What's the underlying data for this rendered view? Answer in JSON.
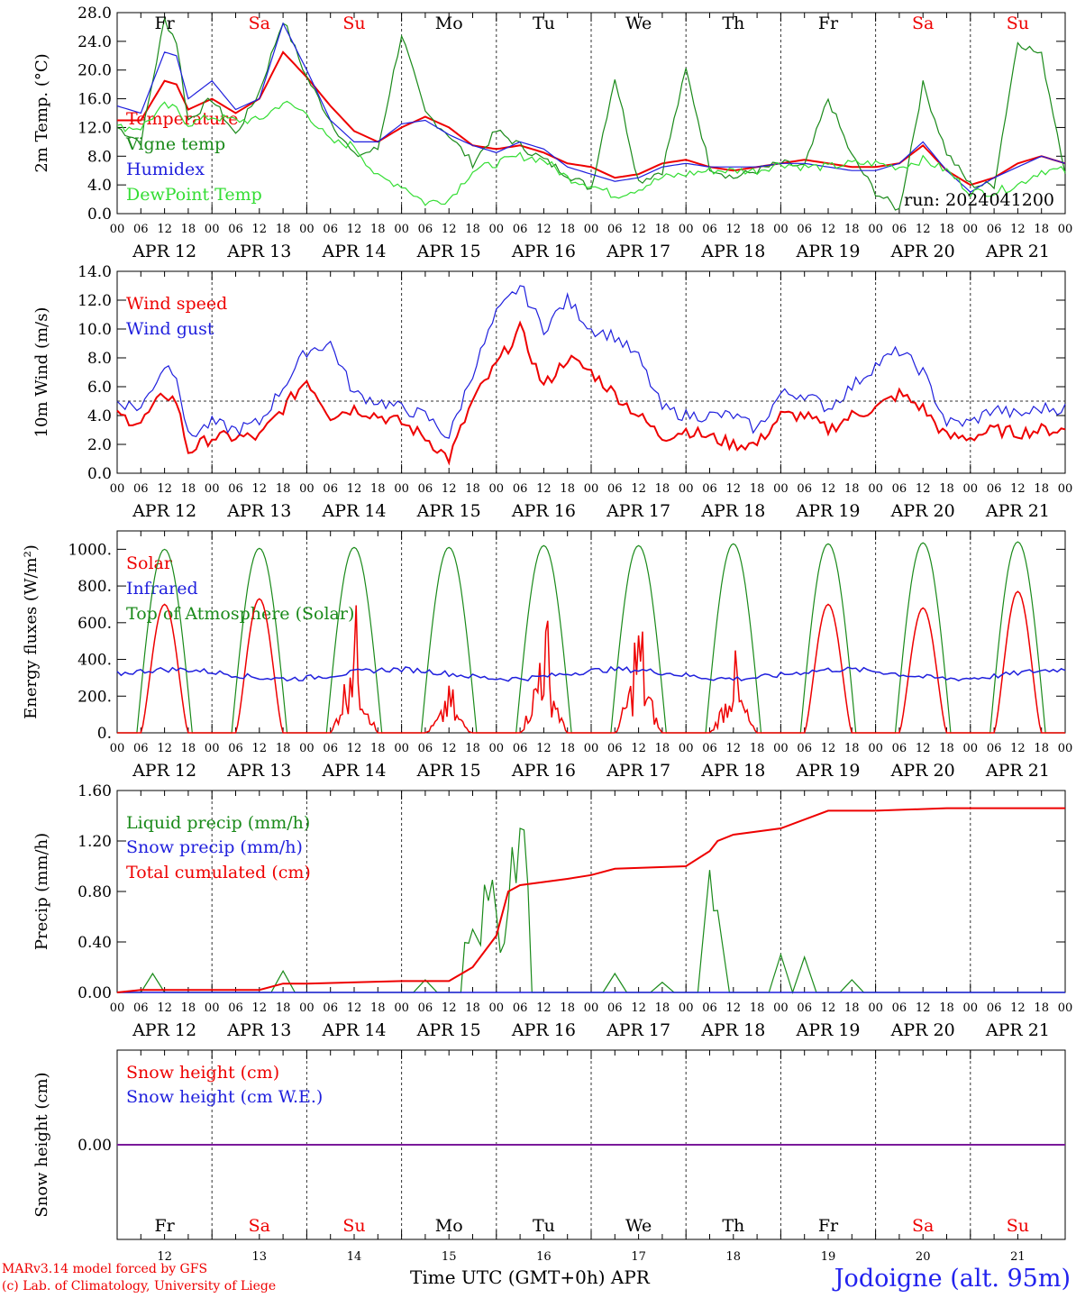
{
  "colors": {
    "red": "#ee0000",
    "green": "#1a8a1a",
    "blue": "#1f1fdd",
    "lightgreen": "#33dd33",
    "purple": "#7a1a9a",
    "grey": "#555555"
  },
  "x_tick_labels": [
    "00",
    "06",
    "12",
    "18"
  ],
  "x_tick_last": "00",
  "dates": [
    "APR 12",
    "APR 13",
    "APR 14",
    "APR 15",
    "APR 16",
    "APR 17",
    "APR 18",
    "APR 19",
    "APR 20",
    "APR 21"
  ],
  "weekdays": [
    {
      "label": "Fr",
      "weekend": false
    },
    {
      "label": "Sa",
      "weekend": true
    },
    {
      "label": "Su",
      "weekend": true
    },
    {
      "label": "Mo",
      "weekend": false
    },
    {
      "label": "Tu",
      "weekend": false
    },
    {
      "label": "We",
      "weekend": false
    },
    {
      "label": "Th",
      "weekend": false
    },
    {
      "label": "Fr",
      "weekend": false
    },
    {
      "label": "Sa",
      "weekend": true
    },
    {
      "label": "Su",
      "weekend": true
    }
  ],
  "day_numbers": [
    "12",
    "13",
    "14",
    "15",
    "16",
    "17",
    "18",
    "19",
    "20",
    "21"
  ],
  "footer": {
    "model": "MARv3.14 model forced by GFS",
    "lab": "(c) Lab. of Climatology, University of Liege",
    "xlabel": "Time UTC (GMT+0h) APR",
    "station": "Jodoigne (alt. 95m)"
  },
  "chart_data": [
    {
      "type": "line",
      "ylabel": "2m Temp. (°C)",
      "ylim": [
        0,
        28
      ],
      "yticks": [
        "0.0",
        "4.0",
        "8.0",
        "12.0",
        "16.0",
        "20.0",
        "24.0",
        "28.0"
      ],
      "grid": "dashed vertical day separators",
      "annotation": "run: 2024041200",
      "x_hours": [
        0,
        6,
        12,
        15,
        18,
        24,
        30,
        36,
        42,
        48,
        54,
        60,
        66,
        72,
        78,
        84,
        90,
        96,
        102,
        108,
        114,
        120,
        126,
        132,
        138,
        144,
        150,
        156,
        162,
        168,
        174,
        180,
        186,
        192,
        198,
        204,
        210,
        216,
        222,
        228,
        234,
        240
      ],
      "series": [
        {
          "name": "Temperature",
          "color": "red",
          "values": [
            13,
            13,
            18.5,
            18,
            14.5,
            16,
            14,
            16,
            22.5,
            19,
            15,
            11.5,
            10,
            12,
            13.5,
            12,
            9.5,
            9,
            9.5,
            8.5,
            7,
            6.5,
            5,
            5.5,
            7,
            7.5,
            6.5,
            6,
            6.5,
            7,
            7.5,
            7,
            6.5,
            6.5,
            7,
            9.5,
            6,
            4,
            5,
            7,
            8,
            7
          ]
        },
        {
          "name": "Vigne temp",
          "color": "green",
          "values": [
            12,
            10,
            27,
            24,
            13,
            16,
            11,
            17,
            27,
            19,
            13,
            8,
            9,
            25,
            14,
            11,
            7,
            11.5,
            9.5,
            7.5,
            5.5,
            3.5,
            19,
            4.5,
            6,
            20,
            6.5,
            5,
            6,
            7,
            6.5,
            16,
            8,
            3,
            0.5,
            18,
            8.5,
            4,
            4,
            24,
            22,
            6
          ]
        },
        {
          "name": "Humidex",
          "color": "blue",
          "values": [
            15,
            14,
            22.5,
            22,
            16,
            18.5,
            14.5,
            16,
            26.5,
            20,
            13,
            10,
            10,
            12.5,
            13,
            11,
            9.5,
            8.5,
            10,
            9,
            6.5,
            5.5,
            4.5,
            5,
            6.5,
            7,
            6.5,
            6.5,
            6.5,
            7,
            7,
            6.5,
            6,
            6,
            7,
            10,
            6,
            3,
            5,
            6.5,
            8,
            7
          ]
        },
        {
          "name": "DewPoint Temp",
          "color": "lightgreen",
          "values": [
            12,
            12,
            15,
            14.5,
            12.5,
            13.5,
            13,
            13,
            15.5,
            14,
            10,
            9.5,
            5,
            4,
            1.5,
            2,
            6,
            7,
            8,
            7.5,
            5,
            4,
            2.5,
            3.5,
            5,
            5.5,
            6,
            6,
            6,
            7,
            6.5,
            6.5,
            7,
            7,
            6.5,
            7.5,
            6,
            3,
            3,
            4,
            6,
            6
          ]
        }
      ]
    },
    {
      "type": "line",
      "ylabel": "10m Wind (m/s)",
      "ylim": [
        0,
        14
      ],
      "yticks": [
        "0.0",
        "2.0",
        "4.0",
        "6.0",
        "8.0",
        "10.0",
        "12.0",
        "14.0"
      ],
      "reference_line": 5,
      "x_hours": [
        0,
        6,
        12,
        15,
        18,
        24,
        30,
        36,
        42,
        48,
        54,
        60,
        66,
        72,
        78,
        84,
        90,
        96,
        102,
        108,
        114,
        120,
        126,
        132,
        138,
        144,
        150,
        156,
        162,
        168,
        174,
        180,
        186,
        192,
        198,
        204,
        210,
        216,
        222,
        228,
        234,
        240
      ],
      "series": [
        {
          "name": "Wind speed",
          "color": "red",
          "values": [
            4,
            3.5,
            5.5,
            5,
            1.5,
            2.5,
            2.5,
            2.5,
            4.5,
            6.5,
            4,
            4.5,
            4,
            3.5,
            2.5,
            1,
            5,
            7.5,
            10,
            6,
            8,
            7,
            5.5,
            4,
            2.5,
            3,
            2.5,
            2,
            2,
            4,
            4,
            3,
            4,
            4.5,
            5.5,
            4.5,
            2.5,
            2.5,
            3,
            2.8,
            3,
            3
          ]
        },
        {
          "name": "Wind gust",
          "color": "blue",
          "values": [
            5,
            4.5,
            7.5,
            7,
            2.5,
            3.5,
            3,
            3.5,
            6,
            8.5,
            9,
            5.5,
            5,
            4.5,
            4,
            2.5,
            7,
            11,
            13,
            10,
            12,
            10,
            9.5,
            8,
            4.5,
            4,
            4,
            4,
            3,
            5.5,
            5.5,
            4.5,
            6,
            7.5,
            8.5,
            7,
            3.5,
            3.5,
            4.5,
            4,
            4.5,
            4.5
          ]
        }
      ]
    },
    {
      "type": "line",
      "ylabel": "Energy fluxes (W/m²)",
      "ylim": [
        0,
        1100
      ],
      "yticks": [
        "0.",
        "200.",
        "400.",
        "600.",
        "800.",
        "1000."
      ],
      "series": [
        {
          "name": "Solar",
          "color": "red",
          "daily_peaks": [
            700,
            730,
            720,
            260,
            680,
            640,
            460,
            700,
            680,
            770
          ]
        },
        {
          "name": "Infrared",
          "color": "blue",
          "typical_range": [
            270,
            380
          ]
        },
        {
          "name": "Top of Atmosphere (Solar)",
          "color": "green",
          "daily_peaks": [
            1000,
            1005,
            1010,
            1010,
            1020,
            1020,
            1030,
            1030,
            1035,
            1040
          ]
        }
      ]
    },
    {
      "type": "line",
      "ylabel": "Precip (mm/h)",
      "ylim": [
        0,
        1.6
      ],
      "yticks": [
        "0.00",
        "0.40",
        "0.80",
        "1.20",
        "1.60"
      ],
      "series": [
        {
          "name": "Liquid precip (mm/h)",
          "color": "green",
          "notable_values": [
            {
              "hour": 9,
              "value": 0.15
            },
            {
              "hour": 42,
              "value": 0.17
            },
            {
              "hour": 78,
              "value": 0.1
            },
            {
              "hour": 90,
              "value": 0.5
            },
            {
              "hour": 102,
              "value": 1.3
            },
            {
              "hour": 126,
              "value": 0.15
            },
            {
              "hour": 138,
              "value": 0.08
            },
            {
              "hour": 150,
              "value": 0.97
            },
            {
              "hour": 152,
              "value": 0.65
            },
            {
              "hour": 168,
              "value": 0.3
            },
            {
              "hour": 174,
              "value": 0.28
            },
            {
              "hour": 186,
              "value": 0.1
            }
          ]
        },
        {
          "name": "Snow precip (mm/h)",
          "color": "blue",
          "values": "0.00"
        },
        {
          "name": "Total cumulated (cm)",
          "color": "red",
          "x_hours": [
            0,
            6,
            36,
            42,
            48,
            72,
            84,
            90,
            96,
            99,
            102,
            114,
            120,
            126,
            144,
            150,
            152,
            156,
            168,
            180,
            186,
            192,
            210,
            240
          ],
          "values": [
            0,
            0.02,
            0.02,
            0.07,
            0.07,
            0.09,
            0.09,
            0.2,
            0.45,
            0.8,
            0.85,
            0.9,
            0.93,
            0.98,
            1.0,
            1.12,
            1.2,
            1.25,
            1.3,
            1.44,
            1.44,
            1.44,
            1.46,
            1.46
          ]
        }
      ]
    },
    {
      "type": "line",
      "ylabel": "Snow height (cm)",
      "yticks": [
        "0.00"
      ],
      "series": [
        {
          "name": "Snow height (cm)",
          "color": "red",
          "values": "0.00"
        },
        {
          "name": "Snow height (cm W.E.)",
          "color": "blue",
          "values": "0.00"
        }
      ]
    }
  ]
}
